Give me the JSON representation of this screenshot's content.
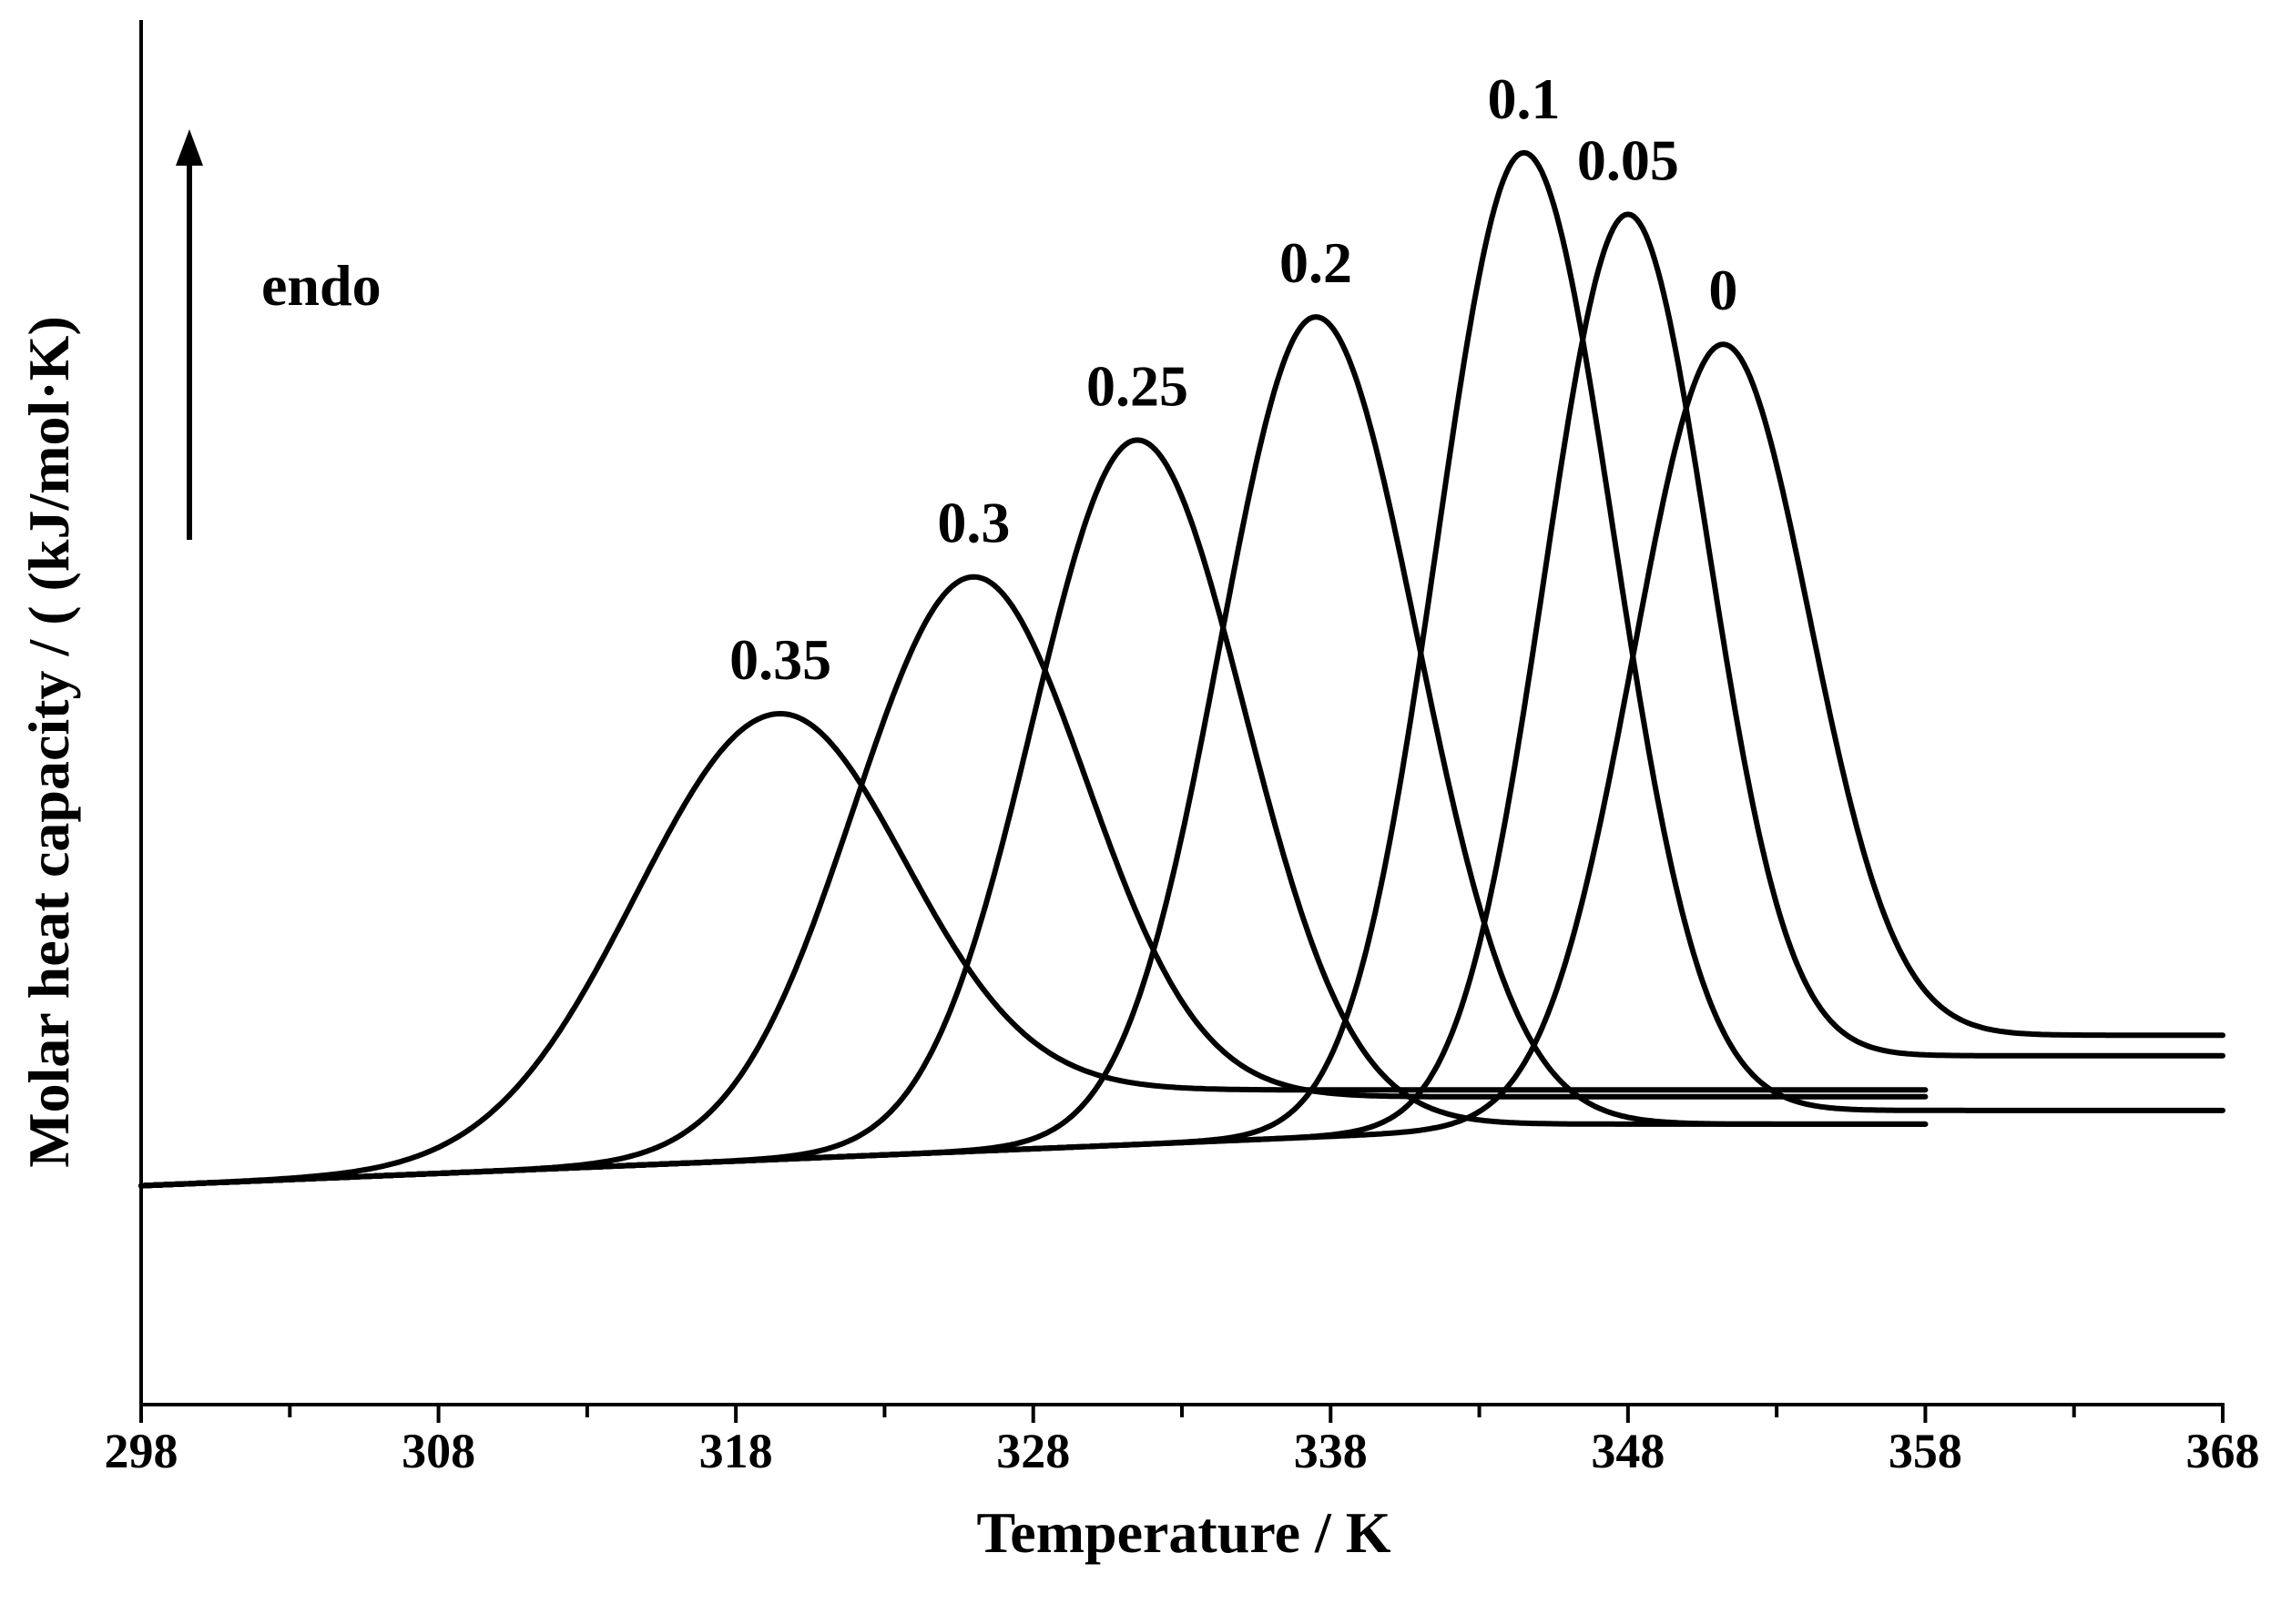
{
  "chart_data": {
    "type": "line",
    "title": "",
    "xlabel": "Temperature / K",
    "ylabel": "Molar heat capacity / ( (kJ/mol·K)",
    "xlim": [
      298,
      368
    ],
    "ylim": [
      0,
      1
    ],
    "x_ticks": [
      298,
      308,
      318,
      328,
      338,
      348,
      358,
      368
    ],
    "x_minor_step": 5,
    "y_ticks_shown": false,
    "grid": false,
    "annotation": {
      "text": "endo",
      "direction": "up"
    },
    "series": [
      {
        "name": "0",
        "label": "0",
        "peak_x": 351.2,
        "peak_y": 0.775,
        "sigma_left": 3.0,
        "sigma_right": 2.9,
        "start_y": 0.16,
        "end_y": 0.27,
        "x_end": 368
      },
      {
        "name": "0.05",
        "label": "0.05",
        "peak_x": 348.0,
        "peak_y": 0.87,
        "sigma_left": 2.8,
        "sigma_right": 2.7,
        "start_y": 0.16,
        "end_y": 0.255,
        "x_end": 368
      },
      {
        "name": "0.1",
        "label": "0.1",
        "peak_x": 344.5,
        "peak_y": 0.915,
        "sigma_left": 2.9,
        "sigma_right": 3.0,
        "start_y": 0.16,
        "end_y": 0.215,
        "x_end": 368
      },
      {
        "name": "0.2",
        "label": "0.2",
        "peak_x": 337.5,
        "peak_y": 0.795,
        "sigma_left": 3.2,
        "sigma_right": 3.4,
        "start_y": 0.16,
        "end_y": 0.205,
        "x_end": 358
      },
      {
        "name": "0.25",
        "label": "0.25",
        "peak_x": 331.5,
        "peak_y": 0.705,
        "sigma_left": 3.5,
        "sigma_right": 3.6,
        "start_y": 0.16,
        "end_y": 0.205,
        "x_end": 358
      },
      {
        "name": "0.3",
        "label": "0.3",
        "peak_x": 326.0,
        "peak_y": 0.605,
        "sigma_left": 4.0,
        "sigma_right": 3.8,
        "start_y": 0.16,
        "end_y": 0.225,
        "x_end": 358
      },
      {
        "name": "0.35",
        "label": "0.35",
        "peak_x": 319.5,
        "peak_y": 0.505,
        "sigma_left": 4.8,
        "sigma_right": 4.2,
        "start_y": 0.16,
        "end_y": 0.23,
        "x_end": 358
      }
    ]
  }
}
